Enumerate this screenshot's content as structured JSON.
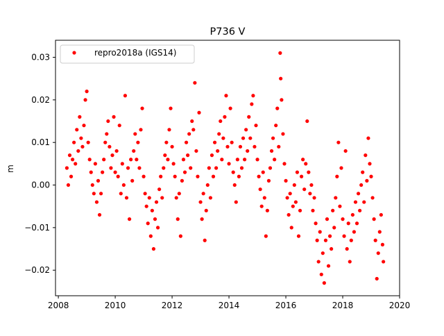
{
  "chart_data": {
    "type": "scatter",
    "title": "P736 V",
    "xlabel": "",
    "ylabel": "m",
    "xlim": [
      2007.9,
      2020.0
    ],
    "ylim": [
      -0.026,
      0.034
    ],
    "xticks": [
      2008,
      2010,
      2012,
      2014,
      2016,
      2018,
      2020
    ],
    "yticks": [
      -0.02,
      -0.01,
      0.0,
      0.01,
      0.02,
      0.03
    ],
    "xtick_labels": [
      "2008",
      "2010",
      "2012",
      "2014",
      "2016",
      "2018",
      "2020"
    ],
    "ytick_labels": [
      "−0.02",
      "−0.01",
      "0.00",
      "0.01",
      "0.02",
      "0.03"
    ],
    "grid": false,
    "legend_position": "top-left",
    "series": [
      {
        "name": "repro2018a (IGS14)",
        "color": "#ff0000",
        "marker": "circle",
        "points": [
          [
            2008.3,
            0.004
          ],
          [
            2008.35,
            0.0
          ],
          [
            2008.4,
            0.007
          ],
          [
            2008.45,
            0.002
          ],
          [
            2008.5,
            0.006
          ],
          [
            2008.55,
            0.01
          ],
          [
            2008.6,
            0.005
          ],
          [
            2008.65,
            0.013
          ],
          [
            2008.7,
            0.008
          ],
          [
            2008.75,
            0.016
          ],
          [
            2008.8,
            0.011
          ],
          [
            2008.85,
            0.009
          ],
          [
            2008.9,
            0.014
          ],
          [
            2008.95,
            0.02
          ],
          [
            2009.0,
            0.022
          ],
          [
            2009.05,
            0.01
          ],
          [
            2009.1,
            0.006
          ],
          [
            2009.15,
            0.003
          ],
          [
            2009.2,
            0.0
          ],
          [
            2009.25,
            -0.002
          ],
          [
            2009.3,
            0.005
          ],
          [
            2009.35,
            -0.004
          ],
          [
            2009.4,
            0.001
          ],
          [
            2009.45,
            -0.007
          ],
          [
            2009.5,
            -0.002
          ],
          [
            2009.55,
            0.003
          ],
          [
            2009.6,
            0.006
          ],
          [
            2009.65,
            0.01
          ],
          [
            2009.7,
            0.012
          ],
          [
            2009.75,
            0.015
          ],
          [
            2009.8,
            0.009
          ],
          [
            2009.85,
            0.004
          ],
          [
            2009.9,
            0.007
          ],
          [
            2009.95,
            0.016
          ],
          [
            2010.0,
            0.003
          ],
          [
            2010.05,
            0.008
          ],
          [
            2010.1,
            0.002
          ],
          [
            2010.15,
            0.014
          ],
          [
            2010.2,
            -0.002
          ],
          [
            2010.25,
            0.005
          ],
          [
            2010.3,
            0.0
          ],
          [
            2010.35,
            0.021
          ],
          [
            2010.4,
            -0.003
          ],
          [
            2010.45,
            0.004
          ],
          [
            2010.5,
            -0.008
          ],
          [
            2010.55,
            0.006
          ],
          [
            2010.6,
            0.001
          ],
          [
            2010.65,
            0.008
          ],
          [
            2010.7,
            0.012
          ],
          [
            2010.75,
            0.006
          ],
          [
            2010.8,
            0.01
          ],
          [
            2010.85,
            0.004
          ],
          [
            2010.9,
            0.013
          ],
          [
            2010.95,
            0.018
          ],
          [
            2011.0,
            0.002
          ],
          [
            2011.05,
            -0.002
          ],
          [
            2011.1,
            -0.005
          ],
          [
            2011.15,
            -0.009
          ],
          [
            2011.2,
            -0.003
          ],
          [
            2011.25,
            -0.012
          ],
          [
            2011.3,
            -0.006
          ],
          [
            2011.35,
            -0.015
          ],
          [
            2011.4,
            -0.008
          ],
          [
            2011.45,
            -0.004
          ],
          [
            2011.5,
            -0.01
          ],
          [
            2011.55,
            -0.001
          ],
          [
            2011.6,
            0.002
          ],
          [
            2011.65,
            -0.003
          ],
          [
            2011.7,
            0.004
          ],
          [
            2011.75,
            0.007
          ],
          [
            2011.8,
            0.01
          ],
          [
            2011.85,
            0.006
          ],
          [
            2011.9,
            0.013
          ],
          [
            2011.95,
            0.018
          ],
          [
            2012.0,
            0.009
          ],
          [
            2012.05,
            0.005
          ],
          [
            2012.1,
            0.002
          ],
          [
            2012.15,
            -0.003
          ],
          [
            2012.2,
            -0.008
          ],
          [
            2012.25,
            -0.002
          ],
          [
            2012.3,
            -0.012
          ],
          [
            2012.35,
            0.001
          ],
          [
            2012.4,
            0.006
          ],
          [
            2012.45,
            0.003
          ],
          [
            2012.5,
            0.01
          ],
          [
            2012.55,
            0.007
          ],
          [
            2012.6,
            0.012
          ],
          [
            2012.65,
            0.004
          ],
          [
            2012.7,
            0.015
          ],
          [
            2012.75,
            0.013
          ],
          [
            2012.8,
            0.024
          ],
          [
            2012.85,
            0.008
          ],
          [
            2012.9,
            0.002
          ],
          [
            2012.95,
            0.017
          ],
          [
            2013.0,
            -0.004
          ],
          [
            2013.05,
            -0.008
          ],
          [
            2013.1,
            -0.002
          ],
          [
            2013.15,
            -0.013
          ],
          [
            2013.2,
            -0.006
          ],
          [
            2013.25,
            0.0
          ],
          [
            2013.3,
            0.004
          ],
          [
            2013.35,
            -0.003
          ],
          [
            2013.4,
            0.007
          ],
          [
            2013.45,
            0.002
          ],
          [
            2013.5,
            0.01
          ],
          [
            2013.55,
            0.004
          ],
          [
            2013.6,
            0.008
          ],
          [
            2013.65,
            0.012
          ],
          [
            2013.7,
            0.015
          ],
          [
            2013.75,
            0.006
          ],
          [
            2013.8,
            0.011
          ],
          [
            2013.85,
            0.016
          ],
          [
            2013.9,
            0.021
          ],
          [
            2013.95,
            0.009
          ],
          [
            2014.0,
            0.005
          ],
          [
            2014.05,
            0.018
          ],
          [
            2014.1,
            0.01
          ],
          [
            2014.15,
            0.003
          ],
          [
            2014.2,
            0.0
          ],
          [
            2014.25,
            -0.004
          ],
          [
            2014.3,
            0.006
          ],
          [
            2014.35,
            0.002
          ],
          [
            2014.4,
            0.009
          ],
          [
            2014.45,
            0.004
          ],
          [
            2014.5,
            0.011
          ],
          [
            2014.55,
            0.006
          ],
          [
            2014.6,
            0.013
          ],
          [
            2014.65,
            0.008
          ],
          [
            2014.7,
            0.016
          ],
          [
            2014.75,
            0.011
          ],
          [
            2014.8,
            0.019
          ],
          [
            2014.85,
            0.021
          ],
          [
            2014.9,
            0.009
          ],
          [
            2014.95,
            0.014
          ],
          [
            2015.0,
            0.006
          ],
          [
            2015.05,
            0.002
          ],
          [
            2015.1,
            -0.001
          ],
          [
            2015.15,
            -0.005
          ],
          [
            2015.2,
            0.003
          ],
          [
            2015.25,
            -0.003
          ],
          [
            2015.3,
            -0.012
          ],
          [
            2015.35,
            -0.006
          ],
          [
            2015.4,
            0.001
          ],
          [
            2015.45,
            0.004
          ],
          [
            2015.5,
            0.008
          ],
          [
            2015.55,
            0.011
          ],
          [
            2015.6,
            0.006
          ],
          [
            2015.65,
            0.014
          ],
          [
            2015.7,
            0.018
          ],
          [
            2015.75,
            0.009
          ],
          [
            2015.8,
            0.031
          ],
          [
            2015.82,
            0.025
          ],
          [
            2015.85,
            0.02
          ],
          [
            2015.9,
            0.012
          ],
          [
            2015.95,
            0.005
          ],
          [
            2016.0,
            0.001
          ],
          [
            2016.05,
            -0.003
          ],
          [
            2016.1,
            -0.007
          ],
          [
            2016.15,
            -0.002
          ],
          [
            2016.2,
            -0.01
          ],
          [
            2016.25,
            -0.005
          ],
          [
            2016.3,
            0.0
          ],
          [
            2016.35,
            -0.004
          ],
          [
            2016.4,
            0.003
          ],
          [
            2016.45,
            -0.012
          ],
          [
            2016.5,
            -0.006
          ],
          [
            2016.55,
            0.002
          ],
          [
            2016.6,
            0.006
          ],
          [
            2016.65,
            -0.001
          ],
          [
            2016.7,
            0.005
          ],
          [
            2016.75,
            0.015
          ],
          [
            2016.8,
            0.003
          ],
          [
            2016.85,
            -0.002
          ],
          [
            2016.9,
            0.0
          ],
          [
            2016.95,
            -0.006
          ],
          [
            2017.0,
            -0.003
          ],
          [
            2017.05,
            -0.009
          ],
          [
            2017.1,
            -0.013
          ],
          [
            2017.15,
            -0.018
          ],
          [
            2017.2,
            -0.011
          ],
          [
            2017.25,
            -0.021
          ],
          [
            2017.3,
            -0.016
          ],
          [
            2017.35,
            -0.023
          ],
          [
            2017.4,
            -0.013
          ],
          [
            2017.45,
            -0.008
          ],
          [
            2017.5,
            -0.019
          ],
          [
            2017.55,
            -0.012
          ],
          [
            2017.6,
            -0.015
          ],
          [
            2017.65,
            -0.006
          ],
          [
            2017.7,
            -0.01
          ],
          [
            2017.75,
            -0.003
          ],
          [
            2017.8,
            0.002
          ],
          [
            2017.85,
            0.01
          ],
          [
            2017.9,
            -0.005
          ],
          [
            2017.95,
            0.004
          ],
          [
            2018.0,
            -0.008
          ],
          [
            2018.05,
            -0.012
          ],
          [
            2018.1,
            0.008
          ],
          [
            2018.15,
            -0.015
          ],
          [
            2018.2,
            -0.009
          ],
          [
            2018.25,
            -0.018
          ],
          [
            2018.3,
            -0.013
          ],
          [
            2018.35,
            -0.007
          ],
          [
            2018.4,
            -0.011
          ],
          [
            2018.45,
            -0.004
          ],
          [
            2018.5,
            -0.009
          ],
          [
            2018.55,
            -0.002
          ],
          [
            2018.6,
            -0.006
          ],
          [
            2018.65,
            0.0
          ],
          [
            2018.7,
            0.003
          ],
          [
            2018.75,
            -0.004
          ],
          [
            2018.8,
            0.007
          ],
          [
            2018.85,
            0.001
          ],
          [
            2018.9,
            0.011
          ],
          [
            2018.95,
            0.005
          ],
          [
            2019.0,
            0.002
          ],
          [
            2019.05,
            -0.003
          ],
          [
            2019.1,
            -0.008
          ],
          [
            2019.15,
            -0.013
          ],
          [
            2019.2,
            -0.022
          ],
          [
            2019.25,
            -0.016
          ],
          [
            2019.3,
            -0.011
          ],
          [
            2019.35,
            -0.007
          ],
          [
            2019.4,
            -0.014
          ],
          [
            2019.43,
            -0.018
          ]
        ]
      }
    ]
  }
}
